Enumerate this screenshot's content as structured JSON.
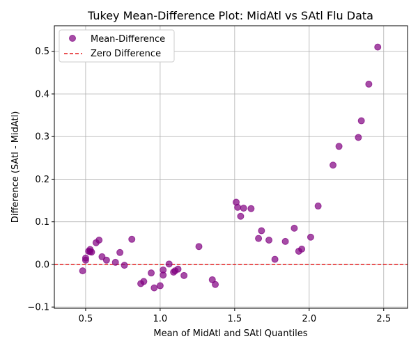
{
  "chart_data": {
    "type": "scatter",
    "title": "Tukey Mean-Difference Plot: MidAtl vs SAtl Flu Data",
    "xlabel": "Mean of MidAtl and SAtl Quantiles",
    "ylabel": "Difference (SAtl - MidAtl)",
    "xlim": [
      0.29,
      2.66
    ],
    "ylim": [
      -0.103,
      0.56
    ],
    "xticks": [
      0.5,
      1.0,
      1.5,
      2.0,
      2.5
    ],
    "xtick_labels": [
      "0.5",
      "1.0",
      "1.5",
      "2.0",
      "2.5"
    ],
    "yticks": [
      -0.1,
      0.0,
      0.1,
      0.2,
      0.3,
      0.4,
      0.5
    ],
    "ytick_labels": [
      "−0.1",
      "0.0",
      "0.1",
      "0.2",
      "0.3",
      "0.4",
      "0.5"
    ],
    "grid": true,
    "legend_position": "top-left",
    "series": [
      {
        "name": "Mean-Difference",
        "color": "#800080",
        "x": [
          0.48,
          0.5,
          0.5,
          0.52,
          0.53,
          0.53,
          0.54,
          0.57,
          0.59,
          0.61,
          0.64,
          0.7,
          0.73,
          0.76,
          0.81,
          0.87,
          0.89,
          0.94,
          0.96,
          1.0,
          1.02,
          1.02,
          1.06,
          1.09,
          1.1,
          1.12,
          1.16,
          1.26,
          1.35,
          1.37,
          1.51,
          1.52,
          1.54,
          1.56,
          1.61,
          1.66,
          1.68,
          1.73,
          1.77,
          1.84,
          1.9,
          1.93,
          1.95,
          2.01,
          2.06,
          2.16,
          2.2,
          2.33,
          2.35,
          2.4,
          2.46
        ],
        "y": [
          -0.015,
          0.01,
          0.015,
          0.031,
          0.035,
          0.03,
          0.029,
          0.051,
          0.057,
          0.018,
          0.01,
          0.005,
          0.028,
          -0.002,
          0.059,
          -0.045,
          -0.04,
          -0.02,
          -0.055,
          -0.05,
          -0.013,
          -0.025,
          0.001,
          -0.018,
          -0.015,
          -0.011,
          -0.026,
          0.042,
          -0.036,
          -0.047,
          0.146,
          0.134,
          0.113,
          0.132,
          0.131,
          0.061,
          0.079,
          0.057,
          0.012,
          0.054,
          0.085,
          0.031,
          0.036,
          0.064,
          0.137,
          0.233,
          0.277,
          0.298,
          0.337,
          0.423,
          0.51
        ]
      }
    ],
    "reference_line": {
      "name": "Zero Difference",
      "y": 0.0,
      "color": "#e31a1c",
      "style": "dashed"
    }
  }
}
